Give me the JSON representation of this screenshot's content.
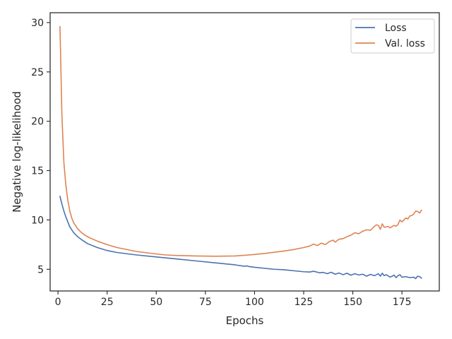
{
  "chart_data": {
    "type": "line",
    "title": "",
    "xlabel": "Epochs",
    "ylabel": "Negative log-likelihood",
    "xlim": [
      -4,
      194
    ],
    "ylim": [
      2.8,
      31
    ],
    "xticks": [
      0,
      25,
      50,
      75,
      100,
      125,
      150,
      175
    ],
    "yticks": [
      5,
      10,
      15,
      20,
      25,
      30
    ],
    "grid": false,
    "legend_position": "top-right",
    "series": [
      {
        "name": "Loss",
        "color": "#4c72b0",
        "points": [
          [
            1,
            12.4
          ],
          [
            2,
            11.6
          ],
          [
            3,
            10.9
          ],
          [
            4,
            10.3
          ],
          [
            5,
            9.8
          ],
          [
            6,
            9.3
          ],
          [
            8,
            8.7
          ],
          [
            10,
            8.3
          ],
          [
            12,
            8.0
          ],
          [
            15,
            7.6
          ],
          [
            20,
            7.2
          ],
          [
            25,
            6.9
          ],
          [
            30,
            6.7
          ],
          [
            40,
            6.45
          ],
          [
            50,
            6.25
          ],
          [
            60,
            6.05
          ],
          [
            70,
            5.85
          ],
          [
            80,
            5.65
          ],
          [
            90,
            5.45
          ],
          [
            95,
            5.3
          ],
          [
            96,
            5.35
          ],
          [
            97,
            5.28
          ],
          [
            100,
            5.2
          ],
          [
            105,
            5.1
          ],
          [
            110,
            5.0
          ],
          [
            115,
            4.95
          ],
          [
            120,
            4.85
          ],
          [
            125,
            4.75
          ],
          [
            128,
            4.72
          ],
          [
            130,
            4.8
          ],
          [
            133,
            4.65
          ],
          [
            135,
            4.68
          ],
          [
            137,
            4.55
          ],
          [
            139,
            4.7
          ],
          [
            141,
            4.5
          ],
          [
            143,
            4.62
          ],
          [
            145,
            4.45
          ],
          [
            147,
            4.6
          ],
          [
            149,
            4.4
          ],
          [
            151,
            4.55
          ],
          [
            153,
            4.42
          ],
          [
            155,
            4.5
          ],
          [
            157,
            4.3
          ],
          [
            159,
            4.48
          ],
          [
            161,
            4.35
          ],
          [
            163,
            4.55
          ],
          [
            164,
            4.3
          ],
          [
            165,
            4.6
          ],
          [
            166,
            4.35
          ],
          [
            167,
            4.45
          ],
          [
            169,
            4.2
          ],
          [
            171,
            4.4
          ],
          [
            172,
            4.15
          ],
          [
            173,
            4.35
          ],
          [
            174,
            4.45
          ],
          [
            175,
            4.2
          ],
          [
            177,
            4.25
          ],
          [
            179,
            4.15
          ],
          [
            181,
            4.2
          ],
          [
            182,
            4.05
          ],
          [
            183,
            4.3
          ],
          [
            184,
            4.25
          ],
          [
            185,
            4.1
          ]
        ]
      },
      {
        "name": "Val. loss",
        "color": "#dd8452",
        "points": [
          [
            1,
            29.6
          ],
          [
            2,
            20.5
          ],
          [
            3,
            15.8
          ],
          [
            4,
            13.5
          ],
          [
            5,
            12.0
          ],
          [
            6,
            10.9
          ],
          [
            7,
            10.2
          ],
          [
            8,
            9.7
          ],
          [
            10,
            9.1
          ],
          [
            12,
            8.7
          ],
          [
            15,
            8.3
          ],
          [
            20,
            7.85
          ],
          [
            25,
            7.5
          ],
          [
            30,
            7.2
          ],
          [
            40,
            6.8
          ],
          [
            50,
            6.55
          ],
          [
            55,
            6.45
          ],
          [
            60,
            6.4
          ],
          [
            70,
            6.35
          ],
          [
            80,
            6.32
          ],
          [
            90,
            6.35
          ],
          [
            95,
            6.42
          ],
          [
            100,
            6.5
          ],
          [
            105,
            6.6
          ],
          [
            110,
            6.72
          ],
          [
            115,
            6.85
          ],
          [
            120,
            7.0
          ],
          [
            125,
            7.2
          ],
          [
            128,
            7.35
          ],
          [
            130,
            7.55
          ],
          [
            132,
            7.4
          ],
          [
            134,
            7.65
          ],
          [
            136,
            7.5
          ],
          [
            138,
            7.8
          ],
          [
            140,
            7.95
          ],
          [
            141,
            7.75
          ],
          [
            143,
            8.05
          ],
          [
            145,
            8.1
          ],
          [
            147,
            8.3
          ],
          [
            149,
            8.45
          ],
          [
            151,
            8.7
          ],
          [
            153,
            8.6
          ],
          [
            155,
            8.85
          ],
          [
            157,
            9.0
          ],
          [
            159,
            8.95
          ],
          [
            161,
            9.35
          ],
          [
            162,
            9.5
          ],
          [
            163,
            9.45
          ],
          [
            164,
            9.05
          ],
          [
            165,
            9.6
          ],
          [
            166,
            9.25
          ],
          [
            168,
            9.35
          ],
          [
            169,
            9.2
          ],
          [
            171,
            9.45
          ],
          [
            172,
            9.35
          ],
          [
            173,
            9.55
          ],
          [
            174,
            10.0
          ],
          [
            175,
            9.8
          ],
          [
            177,
            10.2
          ],
          [
            178,
            10.1
          ],
          [
            179,
            10.4
          ],
          [
            180,
            10.45
          ],
          [
            181,
            10.6
          ],
          [
            182,
            10.9
          ],
          [
            183,
            10.85
          ],
          [
            184,
            10.7
          ],
          [
            185,
            11.0
          ]
        ]
      }
    ]
  }
}
